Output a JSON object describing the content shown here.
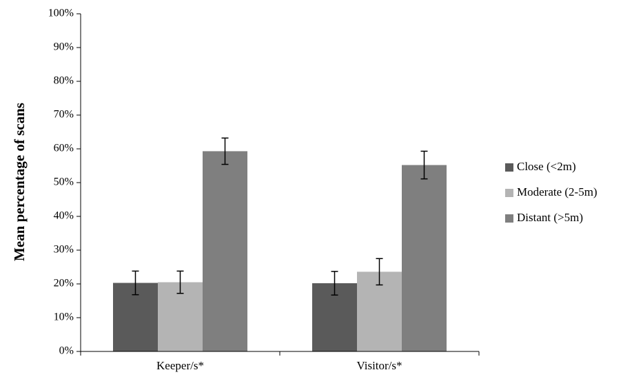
{
  "chart_data": {
    "type": "bar",
    "title": "",
    "xlabel": "",
    "ylabel": "Mean percentage of scans",
    "categories": [
      "Keeper/s*",
      "Visitor/s*"
    ],
    "ylim": [
      0,
      100
    ],
    "yticks": [
      "0%",
      "10%",
      "20%",
      "30%",
      "40%",
      "50%",
      "60%",
      "70%",
      "80%",
      "90%",
      "100%"
    ],
    "grid": false,
    "legend_position": "right",
    "series": [
      {
        "name": "Close (<2m)",
        "color": "#5a5a5a",
        "values": [
          20.3,
          20.2
        ],
        "err": [
          3.5,
          3.5
        ]
      },
      {
        "name": "Moderate (2-5m)",
        "color": "#b4b4b4",
        "values": [
          20.5,
          23.6
        ],
        "err": [
          3.3,
          3.9
        ]
      },
      {
        "name": "Distant (>5m)",
        "color": "#7f7f7f",
        "values": [
          59.3,
          55.2
        ],
        "err": [
          3.9,
          4.1
        ]
      }
    ]
  }
}
